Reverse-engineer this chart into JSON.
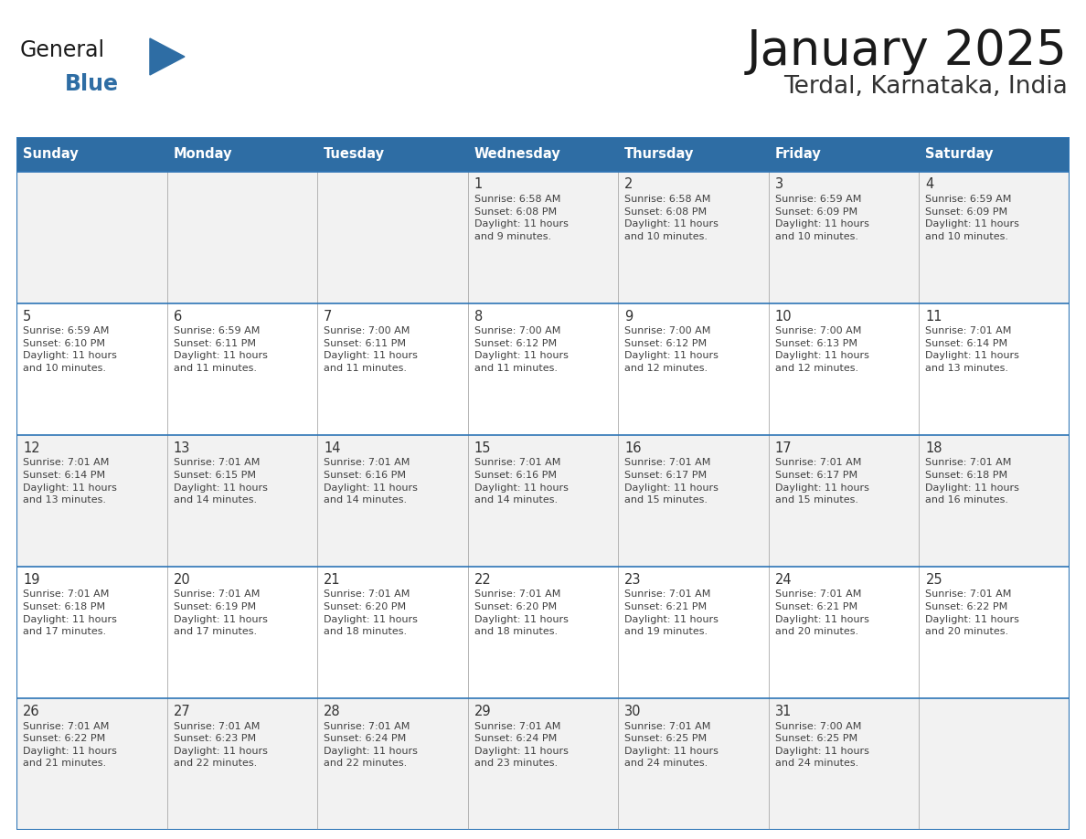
{
  "title": "January 2025",
  "subtitle": "Terdal, Karnataka, India",
  "header_color": "#2E6DA4",
  "header_text_color": "#FFFFFF",
  "day_names": [
    "Sunday",
    "Monday",
    "Tuesday",
    "Wednesday",
    "Thursday",
    "Friday",
    "Saturday"
  ],
  "row_bg_colors": [
    "#F2F2F2",
    "#FFFFFF"
  ],
  "border_color": "#2E75B6",
  "cell_border_color": "#2E75B6",
  "text_color": "#404040",
  "num_color": "#333333",
  "logo_general_color": "#1a1a1a",
  "logo_blue_color": "#2E6DA4",
  "logo_triangle_color": "#2E6DA4",
  "title_color": "#1a1a1a",
  "subtitle_color": "#333333",
  "calendar_data": [
    [
      {
        "day": 0
      },
      {
        "day": 0
      },
      {
        "day": 0
      },
      {
        "day": 1,
        "sunrise": "6:58 AM",
        "sunset": "6:08 PM",
        "daylight": "11 hours\nand 9 minutes."
      },
      {
        "day": 2,
        "sunrise": "6:58 AM",
        "sunset": "6:08 PM",
        "daylight": "11 hours\nand 10 minutes."
      },
      {
        "day": 3,
        "sunrise": "6:59 AM",
        "sunset": "6:09 PM",
        "daylight": "11 hours\nand 10 minutes."
      },
      {
        "day": 4,
        "sunrise": "6:59 AM",
        "sunset": "6:09 PM",
        "daylight": "11 hours\nand 10 minutes."
      }
    ],
    [
      {
        "day": 5,
        "sunrise": "6:59 AM",
        "sunset": "6:10 PM",
        "daylight": "11 hours\nand 10 minutes."
      },
      {
        "day": 6,
        "sunrise": "6:59 AM",
        "sunset": "6:11 PM",
        "daylight": "11 hours\nand 11 minutes."
      },
      {
        "day": 7,
        "sunrise": "7:00 AM",
        "sunset": "6:11 PM",
        "daylight": "11 hours\nand 11 minutes."
      },
      {
        "day": 8,
        "sunrise": "7:00 AM",
        "sunset": "6:12 PM",
        "daylight": "11 hours\nand 11 minutes."
      },
      {
        "day": 9,
        "sunrise": "7:00 AM",
        "sunset": "6:12 PM",
        "daylight": "11 hours\nand 12 minutes."
      },
      {
        "day": 10,
        "sunrise": "7:00 AM",
        "sunset": "6:13 PM",
        "daylight": "11 hours\nand 12 minutes."
      },
      {
        "day": 11,
        "sunrise": "7:01 AM",
        "sunset": "6:14 PM",
        "daylight": "11 hours\nand 13 minutes."
      }
    ],
    [
      {
        "day": 12,
        "sunrise": "7:01 AM",
        "sunset": "6:14 PM",
        "daylight": "11 hours\nand 13 minutes."
      },
      {
        "day": 13,
        "sunrise": "7:01 AM",
        "sunset": "6:15 PM",
        "daylight": "11 hours\nand 14 minutes."
      },
      {
        "day": 14,
        "sunrise": "7:01 AM",
        "sunset": "6:16 PM",
        "daylight": "11 hours\nand 14 minutes."
      },
      {
        "day": 15,
        "sunrise": "7:01 AM",
        "sunset": "6:16 PM",
        "daylight": "11 hours\nand 14 minutes."
      },
      {
        "day": 16,
        "sunrise": "7:01 AM",
        "sunset": "6:17 PM",
        "daylight": "11 hours\nand 15 minutes."
      },
      {
        "day": 17,
        "sunrise": "7:01 AM",
        "sunset": "6:17 PM",
        "daylight": "11 hours\nand 15 minutes."
      },
      {
        "day": 18,
        "sunrise": "7:01 AM",
        "sunset": "6:18 PM",
        "daylight": "11 hours\nand 16 minutes."
      }
    ],
    [
      {
        "day": 19,
        "sunrise": "7:01 AM",
        "sunset": "6:18 PM",
        "daylight": "11 hours\nand 17 minutes."
      },
      {
        "day": 20,
        "sunrise": "7:01 AM",
        "sunset": "6:19 PM",
        "daylight": "11 hours\nand 17 minutes."
      },
      {
        "day": 21,
        "sunrise": "7:01 AM",
        "sunset": "6:20 PM",
        "daylight": "11 hours\nand 18 minutes."
      },
      {
        "day": 22,
        "sunrise": "7:01 AM",
        "sunset": "6:20 PM",
        "daylight": "11 hours\nand 18 minutes."
      },
      {
        "day": 23,
        "sunrise": "7:01 AM",
        "sunset": "6:21 PM",
        "daylight": "11 hours\nand 19 minutes."
      },
      {
        "day": 24,
        "sunrise": "7:01 AM",
        "sunset": "6:21 PM",
        "daylight": "11 hours\nand 20 minutes."
      },
      {
        "day": 25,
        "sunrise": "7:01 AM",
        "sunset": "6:22 PM",
        "daylight": "11 hours\nand 20 minutes."
      }
    ],
    [
      {
        "day": 26,
        "sunrise": "7:01 AM",
        "sunset": "6:22 PM",
        "daylight": "11 hours\nand 21 minutes."
      },
      {
        "day": 27,
        "sunrise": "7:01 AM",
        "sunset": "6:23 PM",
        "daylight": "11 hours\nand 22 minutes."
      },
      {
        "day": 28,
        "sunrise": "7:01 AM",
        "sunset": "6:24 PM",
        "daylight": "11 hours\nand 22 minutes."
      },
      {
        "day": 29,
        "sunrise": "7:01 AM",
        "sunset": "6:24 PM",
        "daylight": "11 hours\nand 23 minutes."
      },
      {
        "day": 30,
        "sunrise": "7:01 AM",
        "sunset": "6:25 PM",
        "daylight": "11 hours\nand 24 minutes."
      },
      {
        "day": 31,
        "sunrise": "7:00 AM",
        "sunset": "6:25 PM",
        "daylight": "11 hours\nand 24 minutes."
      },
      {
        "day": 0
      }
    ]
  ]
}
